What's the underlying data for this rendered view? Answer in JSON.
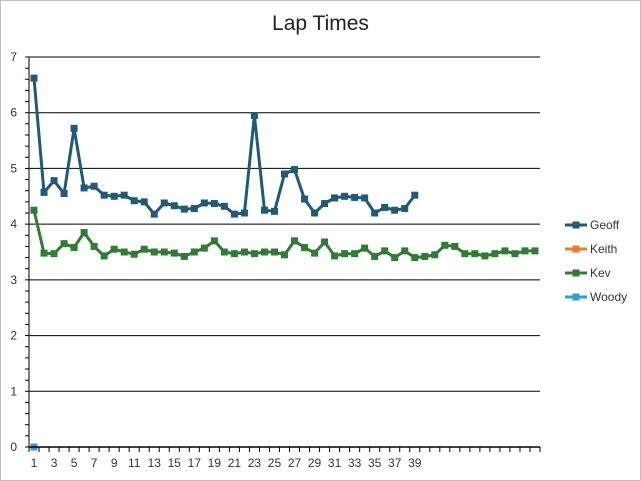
{
  "chart_data": {
    "type": "line",
    "title": "Lap Times",
    "xlabel": "",
    "ylabel": "",
    "ylim": [
      0,
      7
    ],
    "y_ticks": [
      0,
      1,
      2,
      3,
      4,
      5,
      6,
      7
    ],
    "x_tick_labels": [
      "1",
      "3",
      "5",
      "7",
      "9",
      "11",
      "13",
      "15",
      "17",
      "19",
      "21",
      "23",
      "25",
      "27",
      "29",
      "31",
      "33",
      "35",
      "37",
      "39"
    ],
    "x_count": 51,
    "grid": "horizontal",
    "legend_position": "right",
    "series": [
      {
        "name": "Geoff",
        "color": "#1f5a7a",
        "marker": "square",
        "x": [
          1,
          2,
          3,
          4,
          5,
          6,
          7,
          8,
          9,
          10,
          11,
          12,
          13,
          14,
          15,
          16,
          17,
          18,
          19,
          20,
          21,
          22,
          23,
          24,
          25,
          26,
          27,
          28,
          29,
          30,
          31,
          32,
          33,
          34,
          35,
          36,
          37,
          38,
          39
        ],
        "values": [
          6.62,
          4.57,
          4.78,
          4.55,
          5.72,
          4.65,
          4.68,
          4.52,
          4.5,
          4.52,
          4.42,
          4.4,
          4.18,
          4.38,
          4.33,
          4.27,
          4.28,
          4.38,
          4.37,
          4.32,
          4.18,
          4.2,
          5.95,
          4.25,
          4.23,
          4.9,
          4.98,
          4.45,
          4.2,
          4.37,
          4.47,
          4.5,
          4.48,
          4.47,
          4.2,
          4.3,
          4.25,
          4.28,
          4.52
        ]
      },
      {
        "name": "Keith",
        "color": "#ed7d31",
        "marker": "square",
        "x": [],
        "values": []
      },
      {
        "name": "Kev",
        "color": "#2e7d32",
        "marker": "square",
        "x": [
          1,
          2,
          3,
          4,
          5,
          6,
          7,
          8,
          9,
          10,
          11,
          12,
          13,
          14,
          15,
          16,
          17,
          18,
          19,
          20,
          21,
          22,
          23,
          24,
          25,
          26,
          27,
          28,
          29,
          30,
          31,
          32,
          33,
          34,
          35,
          36,
          37,
          38,
          39,
          40,
          41,
          42,
          43,
          44,
          45,
          46,
          47,
          48,
          49,
          50,
          51
        ],
        "values": [
          4.25,
          3.48,
          3.47,
          3.65,
          3.58,
          3.85,
          3.6,
          3.43,
          3.55,
          3.5,
          3.46,
          3.55,
          3.5,
          3.5,
          3.48,
          3.42,
          3.5,
          3.57,
          3.7,
          3.5,
          3.47,
          3.5,
          3.47,
          3.5,
          3.5,
          3.45,
          3.7,
          3.58,
          3.48,
          3.68,
          3.43,
          3.47,
          3.47,
          3.57,
          3.42,
          3.52,
          3.4,
          3.52,
          3.4,
          3.42,
          3.45,
          3.62,
          3.6,
          3.47,
          3.47,
          3.43,
          3.47,
          3.52,
          3.47,
          3.52,
          3.52
        ]
      },
      {
        "name": "Woody",
        "color": "#2e9fd6",
        "marker": "square",
        "x": [
          1
        ],
        "values": [
          0
        ]
      }
    ]
  }
}
